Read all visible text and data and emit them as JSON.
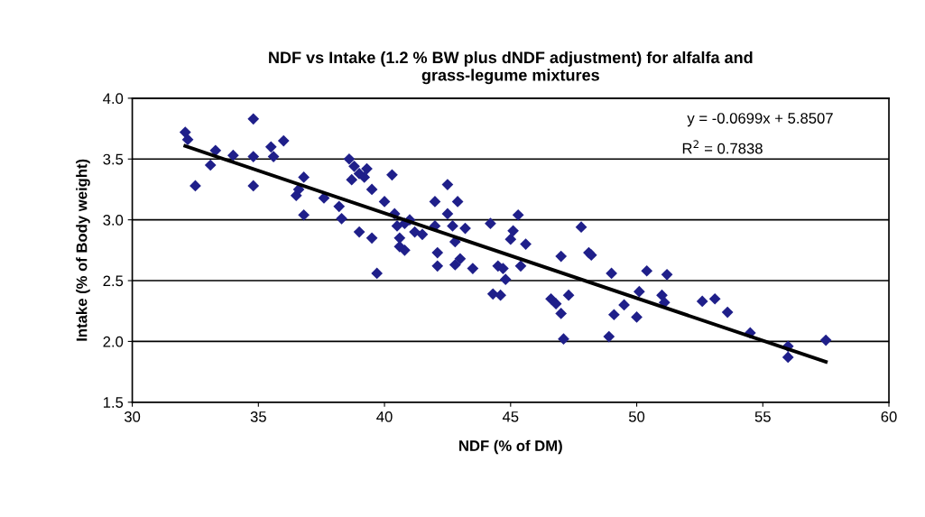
{
  "chart_data": {
    "type": "scatter",
    "title": "NDF vs Intake (1.2 % BW plus dNDF adjustment) for alfalfa and\ngrass-legume mixtures",
    "xlabel": "NDF (% of DM)",
    "ylabel": "Intake (% of Body weight)",
    "annotations": [
      "y = -0.0699x + 5.8507",
      "R$^{2}$ = 0.7838"
    ],
    "xlim": [
      30,
      60
    ],
    "xticks": [
      30,
      35,
      40,
      45,
      50,
      55,
      60
    ],
    "ylim": [
      1.5,
      4.0
    ],
    "yticks": [
      1.5,
      {
        "value": 2.0,
        "label": "2.0"
      },
      2.5,
      {
        "value": 3.0,
        "label": "3.0"
      },
      3.5,
      {
        "value": 4.0,
        "label": "4.0"
      }
    ],
    "grid": "y",
    "marker": "diamond",
    "series": [
      {
        "color": "#1f1f8a",
        "x": [
          32.1,
          32.2,
          32.5,
          33.1,
          33.3,
          34.0,
          34.8,
          34.8,
          34.8,
          35.5,
          35.6,
          36.0,
          36.5,
          36.6,
          36.8,
          36.8,
          37.6,
          38.2,
          38.3,
          38.6,
          38.7,
          38.8,
          39.0,
          39.0,
          39.2,
          39.3,
          39.5,
          39.5,
          39.7,
          40.0,
          40.3,
          40.4,
          40.5,
          40.6,
          40.6,
          40.8,
          40.8,
          41.0,
          41.2,
          41.5,
          42.0,
          42.0,
          42.1,
          42.1,
          42.5,
          42.5,
          42.7,
          42.8,
          42.8,
          42.9,
          43.0,
          43.2,
          43.5,
          44.2,
          44.3,
          44.5,
          44.6,
          44.7,
          44.8,
          45.0,
          45.1,
          45.3,
          45.4,
          45.6,
          46.6,
          46.8,
          47.0,
          47.0,
          47.1,
          47.3,
          47.8,
          48.1,
          48.2,
          48.9,
          49.0,
          49.1,
          49.5,
          50.0,
          50.1,
          50.4,
          51.0,
          51.1,
          51.2,
          52.6,
          53.1,
          53.6,
          54.5,
          56.0,
          56.0,
          57.5
        ],
        "values": [
          3.72,
          3.66,
          3.28,
          3.45,
          3.57,
          3.53,
          3.83,
          3.52,
          3.28,
          3.6,
          3.52,
          3.65,
          3.2,
          3.25,
          3.35,
          3.04,
          3.18,
          3.11,
          3.01,
          3.5,
          3.33,
          3.44,
          2.9,
          3.38,
          3.35,
          3.42,
          3.25,
          2.85,
          2.56,
          3.15,
          3.37,
          3.05,
          2.95,
          2.85,
          2.78,
          2.75,
          2.97,
          3.0,
          2.9,
          2.88,
          3.15,
          2.95,
          2.73,
          2.62,
          3.29,
          3.05,
          2.95,
          2.82,
          2.63,
          3.15,
          2.68,
          2.93,
          2.6,
          2.97,
          2.39,
          2.62,
          2.38,
          2.6,
          2.51,
          2.84,
          2.91,
          3.04,
          2.62,
          2.8,
          2.35,
          2.31,
          2.7,
          2.23,
          2.02,
          2.38,
          2.94,
          2.73,
          2.71,
          2.04,
          2.56,
          2.22,
          2.3,
          2.2,
          2.41,
          2.58,
          2.38,
          2.32,
          2.55,
          2.33,
          2.35,
          2.24,
          2.07,
          1.96,
          1.87,
          2.01
        ]
      },
      {
        "type": "line",
        "color": "#000000",
        "marker": "none",
        "line_style": "solid",
        "x": [
          32.1,
          57.5
        ],
        "values": [
          3.607,
          1.832
        ]
      }
    ]
  }
}
